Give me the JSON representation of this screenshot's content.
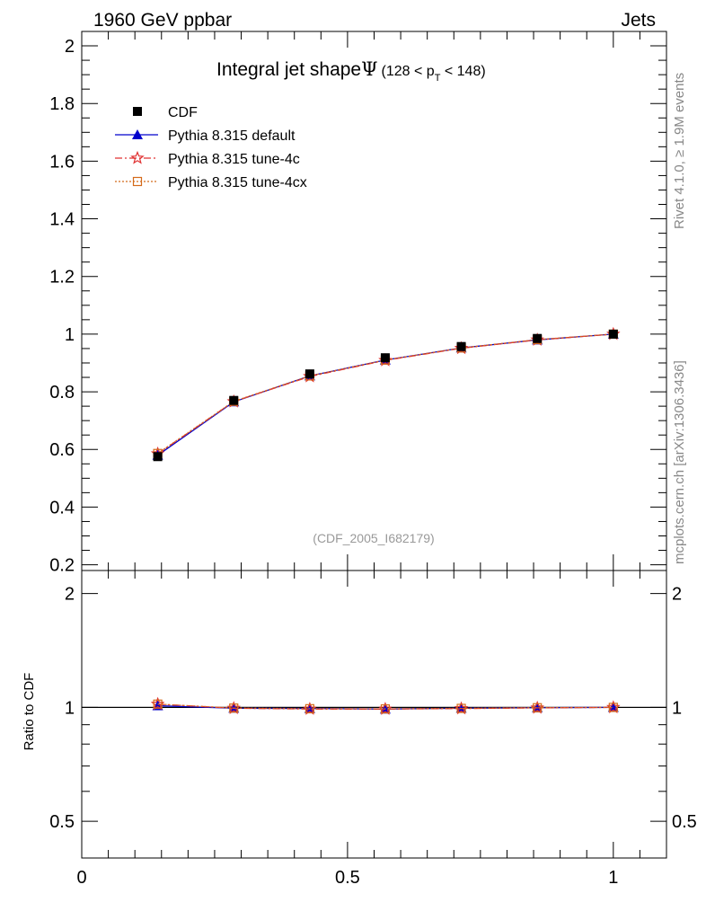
{
  "header": {
    "left": "1960 GeV ppbar",
    "right": "Jets"
  },
  "side_labels": {
    "rivet": "Rivet 4.1.0, ≥ 1.9M events",
    "mcplots": "mcplots.cern.ch [arXiv:1306.3436]"
  },
  "chart_data": {
    "type": "line",
    "title": "Integral jet shape",
    "title_symbol": "Ψ",
    "title_range": {
      "pre": "(128 < p",
      "sub": "T",
      "post": " < 148)"
    },
    "watermark": "(CDF_2005_I682179)",
    "xlabel": "",
    "ylabel": "",
    "xlim": [
      0,
      1.1
    ],
    "ylim": [
      0.18,
      2.05
    ],
    "x_ticks": [
      "0",
      "0.5",
      "1"
    ],
    "y_ticks": [
      "0.2",
      "0.4",
      "0.6",
      "0.8",
      "1",
      "1.2",
      "1.4",
      "1.6",
      "1.8",
      "2"
    ],
    "x": [
      0.143,
      0.286,
      0.429,
      0.571,
      0.714,
      0.857,
      1.0
    ],
    "series": [
      {
        "name": "CDF",
        "color": "#000000",
        "marker": "square",
        "values": [
          0.575,
          0.77,
          0.862,
          0.918,
          0.957,
          0.985,
          1.0
        ]
      },
      {
        "name": "Pythia 8.315 default",
        "color": "#0000cc",
        "marker": "triangle",
        "dash": "",
        "values": [
          0.58,
          0.765,
          0.855,
          0.91,
          0.952,
          0.98,
          1.0
        ]
      },
      {
        "name": "Pythia 8.315 tune-4c",
        "color": "#e03030",
        "marker": "star",
        "dash": "8,3,2,3",
        "values": [
          0.585,
          0.766,
          0.853,
          0.909,
          0.951,
          0.98,
          1.0
        ]
      },
      {
        "name": "Pythia 8.315 tune-4cx",
        "color": "#d46a1a",
        "marker": "open-square",
        "dash": "2,2",
        "values": [
          0.586,
          0.767,
          0.855,
          0.91,
          0.952,
          0.981,
          1.0
        ]
      }
    ],
    "ratio": {
      "ylabel": "Ratio to CDF",
      "ylim": [
        0.4,
        2.3
      ],
      "y_ticks": [
        "0.5",
        "1",
        "2"
      ],
      "series": [
        {
          "name": "Pythia 8.315 default",
          "values": [
            1.01,
            0.995,
            0.993,
            0.99,
            0.995,
            0.998,
            1.0
          ]
        },
        {
          "name": "Pythia 8.315 tune-4c",
          "values": [
            1.02,
            0.995,
            0.99,
            0.99,
            0.993,
            0.997,
            1.0
          ]
        },
        {
          "name": "Pythia 8.315 tune-4cx",
          "values": [
            1.02,
            0.996,
            0.992,
            0.991,
            0.994,
            0.998,
            1.0
          ]
        }
      ]
    }
  }
}
